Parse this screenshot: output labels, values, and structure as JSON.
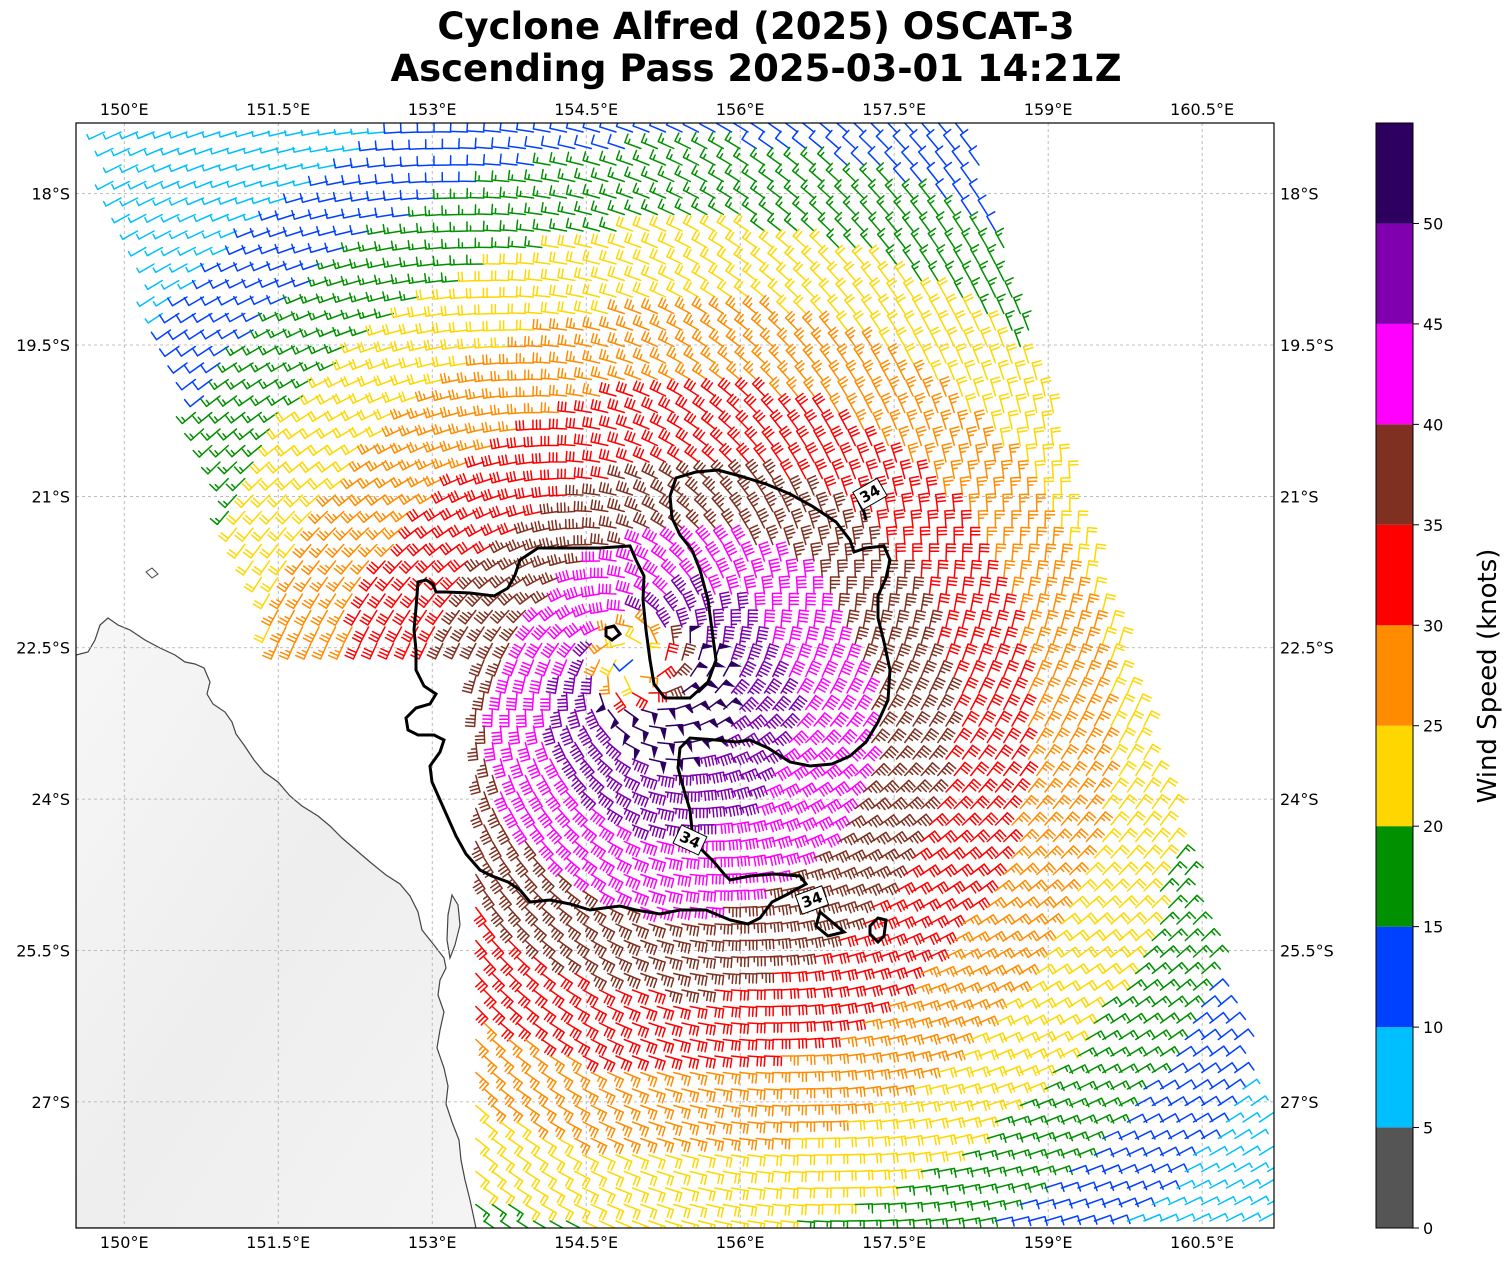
{
  "title": {
    "line1": "Cyclone Alfred (2025) OSCAT-3",
    "line2": "Ascending Pass 2025-03-01 14:21Z"
  },
  "map": {
    "lon_range": [
      149.53,
      161.2
    ],
    "lat_range": [
      -28.25,
      -17.3
    ],
    "lon_ticks": [
      {
        "value": 150.0,
        "label": "150°E"
      },
      {
        "value": 151.5,
        "label": "151.5°E"
      },
      {
        "value": 153.0,
        "label": "153°E"
      },
      {
        "value": 154.5,
        "label": "154.5°E"
      },
      {
        "value": 156.0,
        "label": "156°E"
      },
      {
        "value": 157.5,
        "label": "157.5°E"
      },
      {
        "value": 159.0,
        "label": "159°E"
      },
      {
        "value": 160.5,
        "label": "160.5°E"
      }
    ],
    "lat_ticks": [
      {
        "value": -18.0,
        "label": "18°S"
      },
      {
        "value": -19.5,
        "label": "19.5°S"
      },
      {
        "value": -21.0,
        "label": "21°S"
      },
      {
        "value": -22.5,
        "label": "22.5°S"
      },
      {
        "value": -24.0,
        "label": "24°S"
      },
      {
        "value": -25.5,
        "label": "25.5°S"
      },
      {
        "value": -27.0,
        "label": "27°S"
      }
    ],
    "gridlines": true,
    "land_color": "#f2f2f2",
    "coast_color": "#444444"
  },
  "storm": {
    "center_lon": 155.0,
    "center_lat": -22.65,
    "rotation": "clockwise (southern hemisphere)"
  },
  "contour": {
    "level_kt": 34,
    "labels": [
      "34",
      "34",
      "34"
    ]
  },
  "colorbar": {
    "title": "Wind Speed (knots)",
    "bins": [
      {
        "from": 0,
        "to": 5,
        "color": "#555555"
      },
      {
        "from": 5,
        "to": 10,
        "color": "#00bfff"
      },
      {
        "from": 10,
        "to": 15,
        "color": "#0040ff"
      },
      {
        "from": 15,
        "to": 20,
        "color": "#009000"
      },
      {
        "from": 20,
        "to": 25,
        "color": "#ffd700"
      },
      {
        "from": 25,
        "to": 30,
        "color": "#ff8c00"
      },
      {
        "from": 30,
        "to": 35,
        "color": "#ff0000"
      },
      {
        "from": 35,
        "to": 40,
        "color": "#803020"
      },
      {
        "from": 40,
        "to": 45,
        "color": "#ff00ff"
      },
      {
        "from": 45,
        "to": 50,
        "color": "#8000b0"
      },
      {
        "from": 50,
        "to": 55,
        "color": "#2d0060"
      }
    ],
    "tick_labels": [
      "0",
      "5",
      "10",
      "15",
      "20",
      "25",
      "30",
      "35",
      "40",
      "45",
      "50"
    ]
  }
}
